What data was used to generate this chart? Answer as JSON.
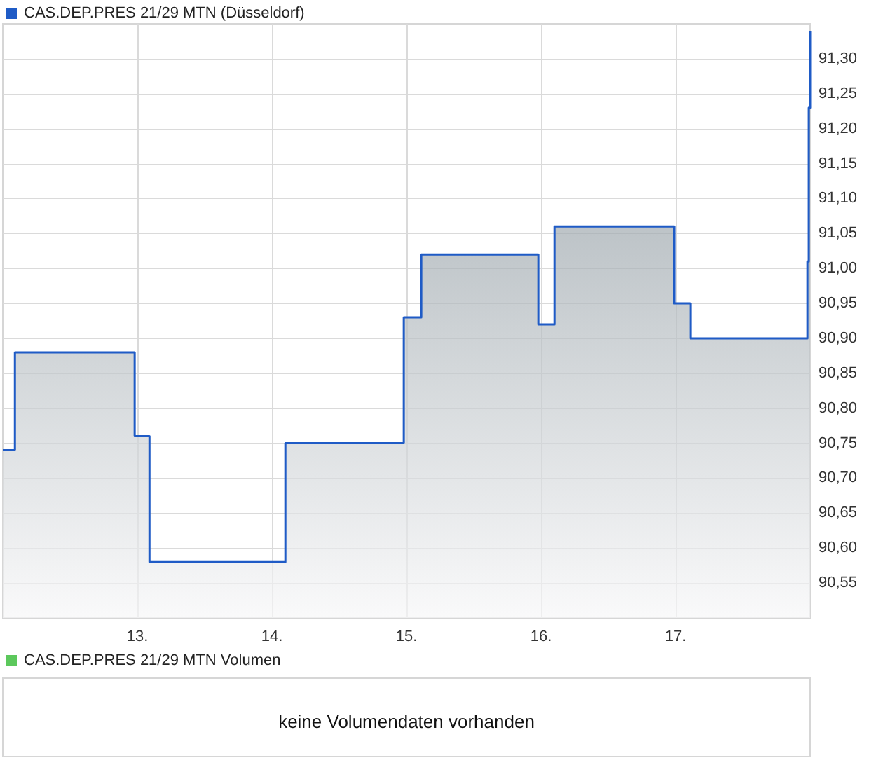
{
  "chart_data": [
    {
      "type": "area",
      "legend": "top left",
      "grid": true,
      "x": [
        12.0,
        12.09,
        12.09,
        12.98,
        12.98,
        13.09,
        13.09,
        14.1,
        14.1,
        14.98,
        14.98,
        15.11,
        15.11,
        15.98,
        15.98,
        16.1,
        16.1,
        16.99,
        16.99,
        17.11,
        17.11,
        17.98,
        17.98,
        17.99,
        17.99,
        18.0,
        18.0
      ],
      "series": [
        {
          "name": "CAS.DEP.PRES 21/29 MTN (Düsseldorf)",
          "color": "#1f5bc6",
          "values": [
            90.74,
            90.74,
            90.88,
            90.88,
            90.76,
            90.76,
            90.58,
            90.58,
            90.75,
            90.75,
            90.93,
            90.93,
            91.02,
            91.02,
            90.92,
            90.92,
            91.06,
            91.06,
            90.95,
            90.95,
            90.9,
            90.9,
            91.01,
            91.01,
            91.23,
            91.23,
            91.34
          ]
        }
      ],
      "xlim": [
        12,
        18
      ],
      "xticks": [
        {
          "value": 13,
          "label": "13."
        },
        {
          "value": 14,
          "label": "14."
        },
        {
          "value": 15,
          "label": "15."
        },
        {
          "value": 16,
          "label": "16."
        },
        {
          "value": 17,
          "label": "17."
        }
      ],
      "ylim": [
        90.5,
        91.35
      ],
      "yticks": [
        {
          "value": 90.55,
          "label": "90,55"
        },
        {
          "value": 90.6,
          "label": "90,60"
        },
        {
          "value": 90.65,
          "label": "90,65"
        },
        {
          "value": 90.7,
          "label": "90,70"
        },
        {
          "value": 90.75,
          "label": "90,75"
        },
        {
          "value": 90.8,
          "label": "90,80"
        },
        {
          "value": 90.85,
          "label": "90,85"
        },
        {
          "value": 90.9,
          "label": "90,90"
        },
        {
          "value": 90.95,
          "label": "90,95"
        },
        {
          "value": 91.0,
          "label": "91,00"
        },
        {
          "value": 91.05,
          "label": "91,05"
        },
        {
          "value": 91.1,
          "label": "91,10"
        },
        {
          "value": 91.15,
          "label": "91,15"
        },
        {
          "value": 91.2,
          "label": "91,20"
        },
        {
          "value": 91.25,
          "label": "91,25"
        },
        {
          "value": 91.3,
          "label": "91,30"
        }
      ]
    },
    {
      "type": "other",
      "legend": "top left",
      "series": [
        {
          "name": "CAS.DEP.PRES 21/29 MTN Volumen",
          "color": "#5cc85c"
        }
      ],
      "annotations": [
        "keine Volumendaten vorhanden"
      ]
    }
  ]
}
